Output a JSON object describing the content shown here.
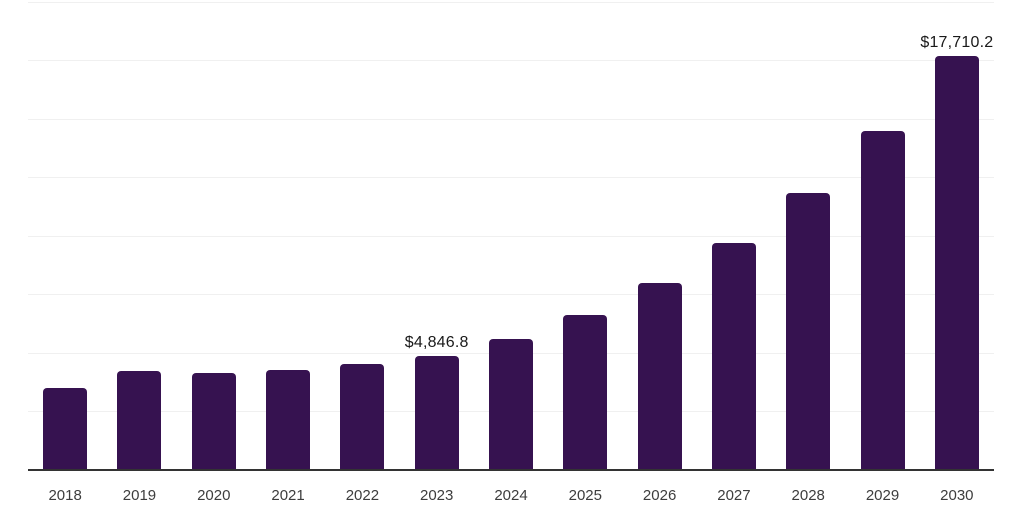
{
  "chart_data": {
    "type": "bar",
    "title": "",
    "xlabel": "",
    "ylabel": "",
    "categories": [
      "2018",
      "2019",
      "2020",
      "2021",
      "2022",
      "2023",
      "2024",
      "2025",
      "2026",
      "2027",
      "2028",
      "2029",
      "2030"
    ],
    "values": [
      3490,
      4210,
      4130,
      4240,
      4530,
      4846.8,
      5600,
      6590,
      8000,
      9710,
      11850,
      14500,
      17710.2
    ],
    "point_labels": [
      "",
      "",
      "",
      "",
      "",
      "$4,846.8",
      "",
      "",
      "",
      "",
      "",
      "",
      "$17,710.2"
    ],
    "ylim": [
      0,
      20000
    ],
    "grid_step": 2500,
    "grid": true,
    "legend": false,
    "colors": {
      "bar": "#361250",
      "grid_line": "#f0f0f0",
      "axis_line": "#333333",
      "tick_label": "#3d3d3d",
      "value_label": "#1a1a1a",
      "background": "#ffffff"
    }
  }
}
